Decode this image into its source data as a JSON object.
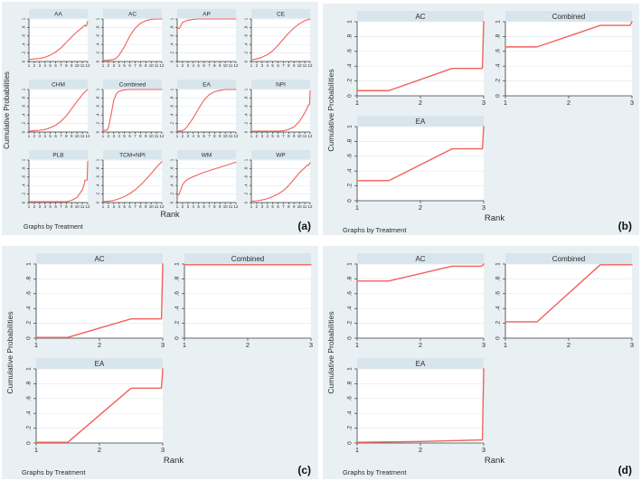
{
  "colors": {
    "quadrant_bg": "#e9f0f3",
    "strip_bg": "#d9e5ec",
    "plot_bg": "#ffffff",
    "grid": "#e2ecf2",
    "axis": "#3a3a3a",
    "text": "#2b2b2b",
    "line": "#f2605a",
    "letter": "#111111"
  },
  "chart_data": [
    {
      "panel": "a",
      "letter": "(a)",
      "type": "line",
      "xlabel": "Rank",
      "ylabel": "Cumulative Probabilities",
      "note": "Graphs by Treatment",
      "xlim": [
        1,
        12
      ],
      "ylim": [
        0,
        1
      ],
      "xticks": [
        1,
        2,
        3,
        4,
        5,
        6,
        7,
        8,
        9,
        10,
        11,
        12
      ],
      "yticks": [
        0,
        0.2,
        0.4,
        0.6,
        0.8,
        1
      ],
      "ytick_labels": [
        "0",
        ".2",
        ".4",
        ".6",
        ".8",
        "1"
      ],
      "grid": "horizontal",
      "legend": "none",
      "series": [
        {
          "name": "AA",
          "points": [
            [
              1,
              0.05
            ],
            [
              2,
              0.06
            ],
            [
              3,
              0.07
            ],
            [
              4,
              0.1
            ],
            [
              5,
              0.15
            ],
            [
              6,
              0.22
            ],
            [
              7,
              0.32
            ],
            [
              8,
              0.45
            ],
            [
              9,
              0.58
            ],
            [
              10,
              0.7
            ],
            [
              11,
              0.8
            ],
            [
              11.5,
              0.86
            ],
            [
              11.6,
              0.83
            ],
            [
              11.8,
              0.84
            ],
            [
              12,
              0.95
            ]
          ]
        },
        {
          "name": "AC",
          "points": [
            [
              1,
              0.02
            ],
            [
              2,
              0.03
            ],
            [
              3,
              0.05
            ],
            [
              3.5,
              0.08
            ],
            [
              4,
              0.15
            ],
            [
              5,
              0.35
            ],
            [
              6,
              0.6
            ],
            [
              7,
              0.78
            ],
            [
              8,
              0.9
            ],
            [
              9,
              0.96
            ],
            [
              10,
              0.99
            ],
            [
              11,
              1
            ],
            [
              12,
              1
            ]
          ]
        },
        {
          "name": "AP",
          "points": [
            [
              1,
              0.78
            ],
            [
              1.4,
              0.78
            ],
            [
              2,
              0.92
            ],
            [
              2.5,
              0.95
            ],
            [
              3,
              0.97
            ],
            [
              4,
              0.99
            ],
            [
              5,
              1
            ],
            [
              12,
              1
            ]
          ]
        },
        {
          "name": "CE",
          "points": [
            [
              1,
              0.04
            ],
            [
              2,
              0.06
            ],
            [
              3,
              0.1
            ],
            [
              4,
              0.16
            ],
            [
              5,
              0.25
            ],
            [
              6,
              0.38
            ],
            [
              7,
              0.53
            ],
            [
              8,
              0.67
            ],
            [
              9,
              0.79
            ],
            [
              10,
              0.89
            ],
            [
              11,
              0.96
            ],
            [
              12,
              1
            ]
          ]
        },
        {
          "name": "CHM",
          "points": [
            [
              1,
              0.02
            ],
            [
              2,
              0.03
            ],
            [
              3,
              0.04
            ],
            [
              4,
              0.06
            ],
            [
              5,
              0.1
            ],
            [
              6,
              0.16
            ],
            [
              7,
              0.25
            ],
            [
              8,
              0.38
            ],
            [
              9,
              0.55
            ],
            [
              10,
              0.72
            ],
            [
              11,
              0.88
            ],
            [
              11.5,
              0.95
            ],
            [
              12,
              1
            ]
          ]
        },
        {
          "name": "Combined",
          "points": [
            [
              1,
              0.03
            ],
            [
              1.8,
              0.05
            ],
            [
              2,
              0.1
            ],
            [
              2.5,
              0.4
            ],
            [
              3,
              0.75
            ],
            [
              3.5,
              0.9
            ],
            [
              4,
              0.96
            ],
            [
              5,
              0.99
            ],
            [
              6,
              1
            ],
            [
              12,
              1
            ]
          ]
        },
        {
          "name": "EA",
          "points": [
            [
              1,
              0.02
            ],
            [
              2,
              0.03
            ],
            [
              2.5,
              0.07
            ],
            [
              3,
              0.15
            ],
            [
              4,
              0.33
            ],
            [
              5,
              0.55
            ],
            [
              6,
              0.75
            ],
            [
              7,
              0.88
            ],
            [
              8,
              0.95
            ],
            [
              9,
              0.98
            ],
            [
              10,
              1
            ],
            [
              12,
              1
            ]
          ]
        },
        {
          "name": "NPI",
          "points": [
            [
              1,
              0.02
            ],
            [
              6,
              0.02
            ],
            [
              7,
              0.03
            ],
            [
              8,
              0.06
            ],
            [
              9,
              0.12
            ],
            [
              10,
              0.25
            ],
            [
              11,
              0.45
            ],
            [
              11.5,
              0.58
            ],
            [
              11.55,
              0.62
            ],
            [
              11.9,
              0.65
            ],
            [
              12,
              0.97
            ]
          ]
        },
        {
          "name": "PLB",
          "points": [
            [
              1,
              0.02
            ],
            [
              8,
              0.02
            ],
            [
              9,
              0.05
            ],
            [
              10,
              0.12
            ],
            [
              11,
              0.3
            ],
            [
              11.4,
              0.45
            ],
            [
              11.45,
              0.52
            ],
            [
              11.9,
              0.53
            ],
            [
              12,
              0.97
            ]
          ]
        },
        {
          "name": "TCM+NPI",
          "points": [
            [
              1,
              0.02
            ],
            [
              2,
              0.03
            ],
            [
              3,
              0.05
            ],
            [
              4,
              0.09
            ],
            [
              5,
              0.14
            ],
            [
              6,
              0.21
            ],
            [
              7,
              0.3
            ],
            [
              8,
              0.41
            ],
            [
              9,
              0.54
            ],
            [
              10,
              0.68
            ],
            [
              11,
              0.83
            ],
            [
              11.5,
              0.9
            ],
            [
              12,
              0.96
            ]
          ]
        },
        {
          "name": "WM",
          "points": [
            [
              1,
              0.17
            ],
            [
              1.3,
              0.18
            ],
            [
              2,
              0.42
            ],
            [
              2.5,
              0.5
            ],
            [
              3,
              0.55
            ],
            [
              4,
              0.61
            ],
            [
              5,
              0.66
            ],
            [
              6,
              0.71
            ],
            [
              7,
              0.75
            ],
            [
              8,
              0.79
            ],
            [
              9,
              0.83
            ],
            [
              10,
              0.87
            ],
            [
              11,
              0.91
            ],
            [
              12,
              0.95
            ]
          ]
        },
        {
          "name": "WP",
          "points": [
            [
              1,
              0.03
            ],
            [
              2,
              0.04
            ],
            [
              3,
              0.06
            ],
            [
              4,
              0.09
            ],
            [
              5,
              0.14
            ],
            [
              6,
              0.2
            ],
            [
              7,
              0.28
            ],
            [
              8,
              0.4
            ],
            [
              9,
              0.55
            ],
            [
              10,
              0.7
            ],
            [
              11,
              0.82
            ],
            [
              11.5,
              0.88
            ],
            [
              11.7,
              0.87
            ],
            [
              12,
              0.94
            ]
          ]
        }
      ]
    },
    {
      "panel": "b",
      "letter": "(b)",
      "type": "line",
      "xlabel": "Rank",
      "ylabel": "Cumulative Probabilities",
      "note": "Graphs by Treatment",
      "xlim": [
        1,
        3
      ],
      "ylim": [
        0,
        1
      ],
      "xticks": [
        1,
        2,
        3
      ],
      "yticks": [
        0,
        0.2,
        0.4,
        0.6,
        0.8,
        1
      ],
      "ytick_labels": [
        "0",
        ".2",
        ".4",
        ".6",
        ".8",
        "1"
      ],
      "grid": "horizontal",
      "legend": "none",
      "series": [
        {
          "name": "AC",
          "points": [
            [
              1,
              0.07
            ],
            [
              1.5,
              0.07
            ],
            [
              2.5,
              0.37
            ],
            [
              2.98,
              0.37
            ],
            [
              3,
              1
            ]
          ]
        },
        {
          "name": "Combined",
          "points": [
            [
              1,
              0.66
            ],
            [
              1.5,
              0.66
            ],
            [
              2.5,
              0.95
            ],
            [
              2.97,
              0.95
            ],
            [
              3,
              1
            ]
          ]
        },
        {
          "name": "EA",
          "points": [
            [
              1,
              0.27
            ],
            [
              1.5,
              0.27
            ],
            [
              2.5,
              0.7
            ],
            [
              2.98,
              0.7
            ],
            [
              3,
              1
            ]
          ]
        }
      ]
    },
    {
      "panel": "c",
      "letter": "(c)",
      "type": "line",
      "xlabel": "Rank",
      "ylabel": "Cumulative Probabilities",
      "note": "Graphs by Treatment",
      "xlim": [
        1,
        3
      ],
      "ylim": [
        0,
        1
      ],
      "xticks": [
        1,
        2,
        3
      ],
      "yticks": [
        0,
        0.2,
        0.4,
        0.6,
        0.8,
        1
      ],
      "ytick_labels": [
        "0",
        ".2",
        ".4",
        ".6",
        ".8",
        "1"
      ],
      "grid": "horizontal",
      "legend": "none",
      "series": [
        {
          "name": "AC",
          "points": [
            [
              1,
              0.01
            ],
            [
              1.5,
              0.01
            ],
            [
              2.5,
              0.26
            ],
            [
              2.98,
              0.26
            ],
            [
              3,
              1
            ]
          ]
        },
        {
          "name": "Combined",
          "points": [
            [
              1,
              0.99
            ],
            [
              3,
              0.99
            ]
          ]
        },
        {
          "name": "EA",
          "points": [
            [
              1,
              0.01
            ],
            [
              1.5,
              0.01
            ],
            [
              2.5,
              0.74
            ],
            [
              2.98,
              0.74
            ],
            [
              3,
              1
            ]
          ]
        }
      ]
    },
    {
      "panel": "d",
      "letter": "(d)",
      "type": "line",
      "xlabel": "Rank",
      "ylabel": "Cumulative Probabilities",
      "note": "Graphs by Treatment",
      "xlim": [
        1,
        3
      ],
      "ylim": [
        0,
        1
      ],
      "xticks": [
        1,
        2,
        3
      ],
      "yticks": [
        0,
        0.2,
        0.4,
        0.6,
        0.8,
        1
      ],
      "ytick_labels": [
        "0",
        ".2",
        ".4",
        ".6",
        ".8",
        "1"
      ],
      "grid": "horizontal",
      "legend": "none",
      "series": [
        {
          "name": "AC",
          "points": [
            [
              1,
              0.77
            ],
            [
              1.5,
              0.77
            ],
            [
              2.5,
              0.97
            ],
            [
              2.97,
              0.97
            ],
            [
              3,
              1
            ]
          ]
        },
        {
          "name": "Combined",
          "points": [
            [
              1,
              0.22
            ],
            [
              1.5,
              0.22
            ],
            [
              2.5,
              0.99
            ],
            [
              3,
              0.99
            ]
          ]
        },
        {
          "name": "EA",
          "points": [
            [
              1,
              0.01
            ],
            [
              2,
              0.02
            ],
            [
              2.9,
              0.04
            ],
            [
              2.98,
              0.04
            ],
            [
              3,
              1
            ]
          ]
        }
      ]
    }
  ]
}
